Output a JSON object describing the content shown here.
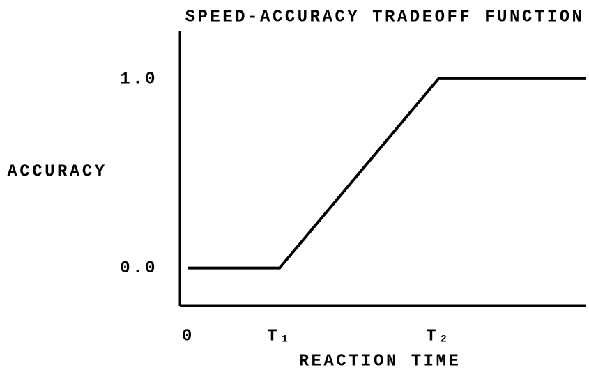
{
  "chart_data": {
    "type": "line",
    "title": "SPEED-ACCURACY TRADEOFF FUNCTION",
    "x_label": "REACTION TIME",
    "y_label": "ACCURACY",
    "x": [
      0,
      2.3,
      6.3,
      10
    ],
    "series": [
      {
        "color": "#000000",
        "values": [
          0,
          0,
          1,
          1
        ]
      }
    ],
    "xlim": [
      0,
      10
    ],
    "xticks": [
      {
        "value": 0,
        "label": "0"
      },
      {
        "value": 2.3,
        "label": "T₁"
      },
      {
        "value": 6.3,
        "label": "T₂"
      }
    ],
    "ylim": [
      -0.2,
      1.25
    ],
    "yticks": [
      {
        "value": 0,
        "label": "0.0"
      },
      {
        "value": 1,
        "label": "1.0"
      }
    ],
    "grid": false
  }
}
